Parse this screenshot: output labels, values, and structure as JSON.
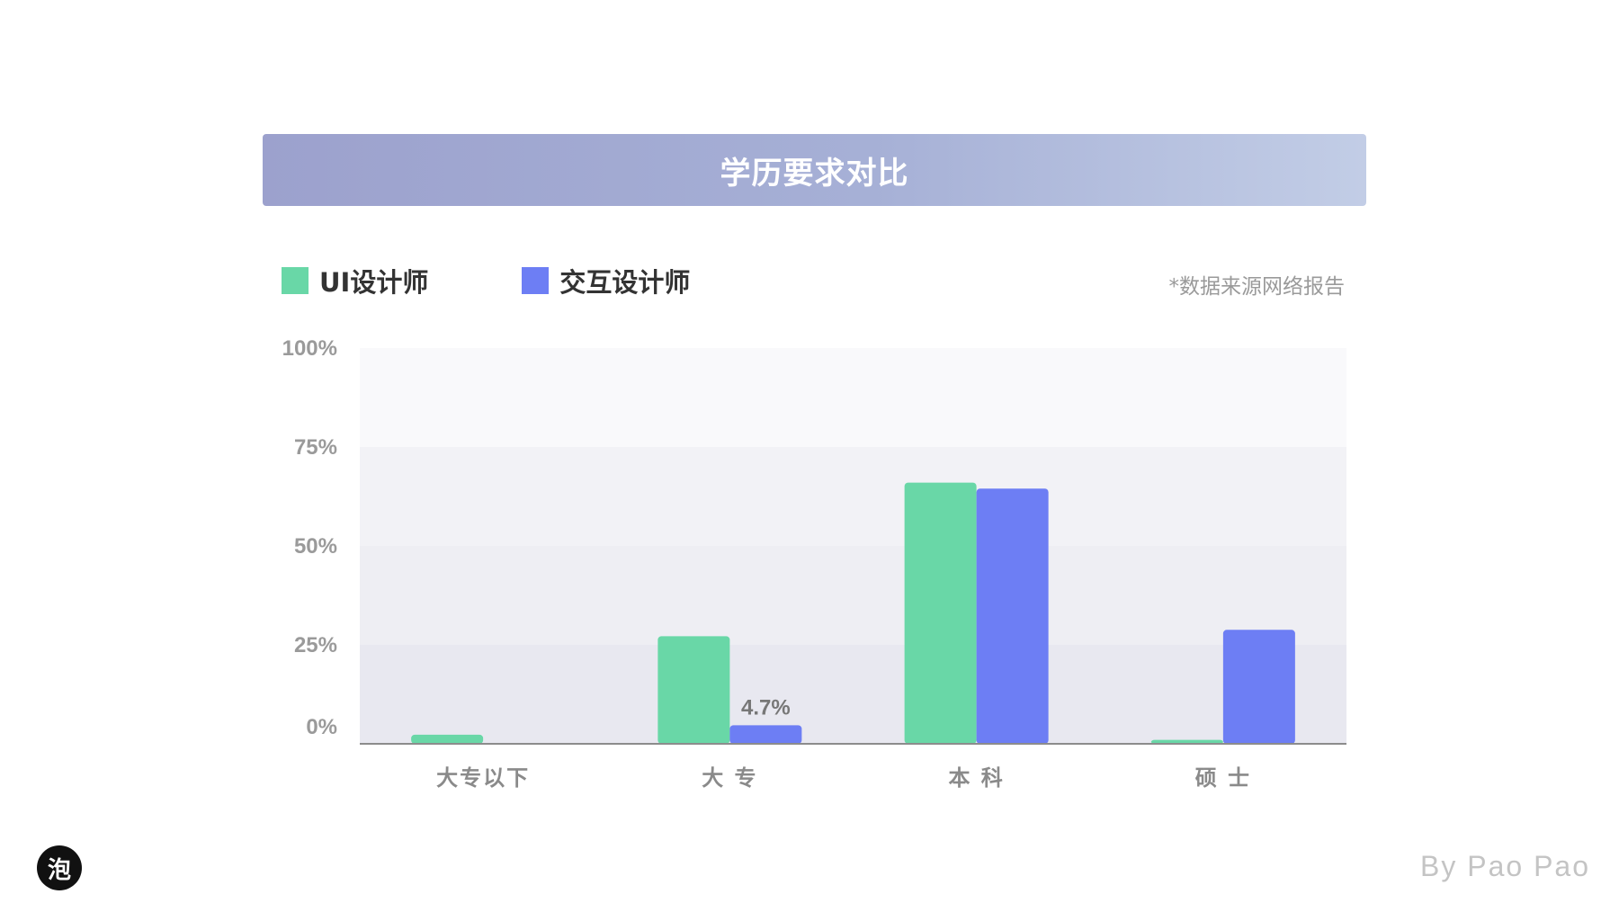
{
  "title": "学历要求对比",
  "source_note": "*数据来源网络报告",
  "byline": "By Pao Pao",
  "logo_glyph": "泡",
  "colors": {
    "ui": "#69d7a7",
    "interaction": "#6d7ef4",
    "title_bar_start": "#9ca1cd",
    "title_bar_end": "#c2cde6"
  },
  "chart_data": {
    "type": "bar",
    "categories": [
      "大专以下",
      "大 专",
      "本 科",
      "硕 士"
    ],
    "series": [
      {
        "name": "UI设计师",
        "color": "#69d7a7",
        "values": [
          2.3,
          27.2,
          66.0,
          1.0
        ]
      },
      {
        "name": "交互设计师",
        "color": "#6d7ef4",
        "values": [
          0,
          4.7,
          64.5,
          28.8
        ]
      }
    ],
    "y_ticks": [
      "0%",
      "25%",
      "50%",
      "75%",
      "100%"
    ],
    "ylim": [
      0,
      100
    ],
    "annotations": [
      {
        "series": 1,
        "category": 1,
        "text": "4.7%"
      }
    ],
    "legend_position": "top-left",
    "grid": "banded"
  }
}
